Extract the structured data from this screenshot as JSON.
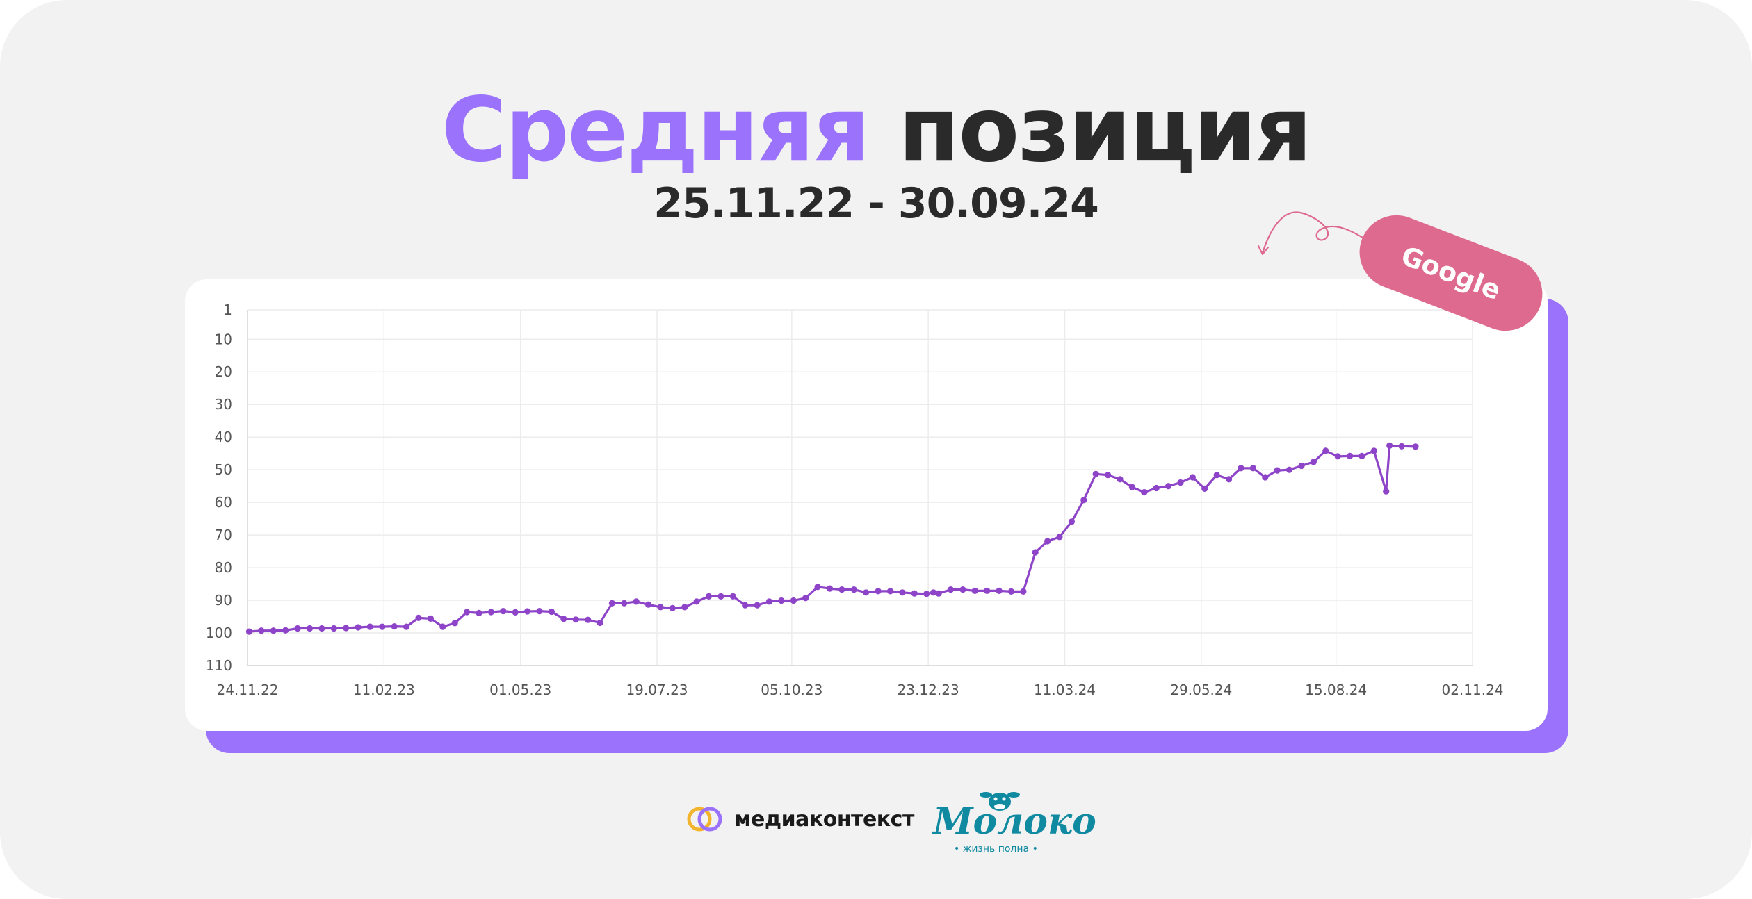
{
  "title": {
    "accent": "Средняя",
    "main": "позиция"
  },
  "subtitle": "25.11.22 - 30.09.24",
  "tag": "Google",
  "footer": {
    "brand_left": "медиаконтекст",
    "brand_right": "Молоко",
    "tagline_right": "• жизнь полна •"
  },
  "colors": {
    "accent": "#9a72fb",
    "line": "#8e44c8",
    "tag": "#de6b8f",
    "text": "#2a2a2a",
    "brand_right": "#0f8aa0"
  },
  "chart_data": {
    "type": "line",
    "title": "",
    "xlabel": "",
    "ylabel": "",
    "y_inverted": true,
    "ylim": [
      1,
      110
    ],
    "yticks": [
      1,
      10,
      20,
      30,
      40,
      50,
      60,
      70,
      80,
      90,
      100,
      110
    ],
    "xlim": [
      "24.11.22",
      "02.11.24"
    ],
    "xticks": [
      "24.11.22",
      "11.02.23",
      "01.05.23",
      "19.07.23",
      "05.10.23",
      "23.12.23",
      "11.03.24",
      "29.05.24",
      "15.08.24",
      "02.11.24"
    ],
    "grid": true,
    "series": [
      {
        "name": "",
        "points": [
          [
            "25.11.22",
            99.6
          ],
          [
            "02.12.22",
            99.3
          ],
          [
            "09.12.22",
            99.3
          ],
          [
            "16.12.22",
            99.2
          ],
          [
            "23.12.22",
            98.6
          ],
          [
            "30.12.22",
            98.6
          ],
          [
            "06.01.23",
            98.6
          ],
          [
            "13.01.23",
            98.6
          ],
          [
            "20.01.23",
            98.5
          ],
          [
            "27.01.23",
            98.3
          ],
          [
            "03.02.23",
            98.1
          ],
          [
            "10.02.23",
            98.1
          ],
          [
            "17.02.23",
            98.0
          ],
          [
            "24.02.23",
            98.1
          ],
          [
            "03.03.23",
            95.4
          ],
          [
            "10.03.23",
            95.6
          ],
          [
            "17.03.23",
            98.1
          ],
          [
            "24.03.23",
            97.0
          ],
          [
            "31.03.23",
            93.6
          ],
          [
            "07.04.23",
            93.9
          ],
          [
            "14.04.23",
            93.6
          ],
          [
            "21.04.23",
            93.3
          ],
          [
            "28.04.23",
            93.7
          ],
          [
            "05.05.23",
            93.4
          ],
          [
            "12.05.23",
            93.3
          ],
          [
            "19.05.23",
            93.5
          ],
          [
            "26.05.23",
            95.7
          ],
          [
            "02.06.23",
            95.9
          ],
          [
            "09.06.23",
            96.0
          ],
          [
            "16.06.23",
            96.9
          ],
          [
            "23.06.23",
            90.9
          ],
          [
            "30.06.23",
            90.9
          ],
          [
            "07.07.23",
            90.4
          ],
          [
            "14.07.23",
            91.3
          ],
          [
            "21.07.23",
            92.1
          ],
          [
            "28.07.23",
            92.4
          ],
          [
            "04.08.23",
            92.1
          ],
          [
            "11.08.23",
            90.4
          ],
          [
            "18.08.23",
            88.8
          ],
          [
            "25.08.23",
            88.8
          ],
          [
            "01.09.23",
            88.8
          ],
          [
            "08.09.23",
            91.5
          ],
          [
            "15.09.23",
            91.5
          ],
          [
            "22.09.23",
            90.4
          ],
          [
            "29.09.23",
            90.1
          ],
          [
            "06.10.23",
            90.1
          ],
          [
            "13.10.23",
            89.3
          ],
          [
            "20.10.23",
            85.9
          ],
          [
            "27.10.23",
            86.4
          ],
          [
            "03.11.23",
            86.7
          ],
          [
            "10.11.23",
            86.7
          ],
          [
            "17.11.23",
            87.6
          ],
          [
            "24.11.23",
            87.2
          ],
          [
            "01.12.23",
            87.2
          ],
          [
            "08.12.23",
            87.6
          ],
          [
            "15.12.23",
            87.9
          ],
          [
            "22.12.23",
            88.0
          ],
          [
            "26.12.23",
            87.6
          ],
          [
            "29.12.23",
            87.9
          ],
          [
            "05.01.24",
            86.7
          ],
          [
            "12.01.24",
            86.7
          ],
          [
            "19.01.24",
            87.1
          ],
          [
            "26.01.24",
            87.1
          ],
          [
            "02.02.24",
            87.1
          ],
          [
            "09.02.24",
            87.3
          ],
          [
            "16.02.24",
            87.3
          ],
          [
            "23.02.24",
            75.3
          ],
          [
            "01.03.24",
            71.9
          ],
          [
            "08.03.24",
            70.6
          ],
          [
            "15.03.24",
            65.9
          ],
          [
            "22.03.24",
            59.3
          ],
          [
            "29.03.24",
            51.3
          ],
          [
            "05.04.24",
            51.6
          ],
          [
            "12.04.24",
            52.9
          ],
          [
            "19.04.24",
            55.3
          ],
          [
            "26.04.24",
            56.9
          ],
          [
            "03.05.24",
            55.6
          ],
          [
            "10.05.24",
            55.0
          ],
          [
            "17.05.24",
            53.9
          ],
          [
            "24.05.24",
            52.3
          ],
          [
            "31.05.24",
            55.8
          ],
          [
            "07.06.24",
            51.6
          ],
          [
            "14.06.24",
            52.9
          ],
          [
            "21.06.24",
            49.5
          ],
          [
            "28.06.24",
            49.5
          ],
          [
            "05.07.24",
            52.3
          ],
          [
            "12.07.24",
            50.2
          ],
          [
            "19.07.24",
            50.0
          ],
          [
            "26.07.24",
            48.8
          ],
          [
            "02.08.24",
            47.6
          ],
          [
            "09.08.24",
            44.2
          ],
          [
            "16.08.24",
            45.9
          ],
          [
            "23.08.24",
            45.8
          ],
          [
            "30.08.24",
            45.8
          ],
          [
            "06.09.24",
            44.2
          ],
          [
            "13.09.24",
            56.6
          ],
          [
            "15.09.24",
            42.6
          ],
          [
            "22.09.24",
            42.8
          ],
          [
            "30.09.24",
            42.9
          ]
        ]
      }
    ]
  }
}
